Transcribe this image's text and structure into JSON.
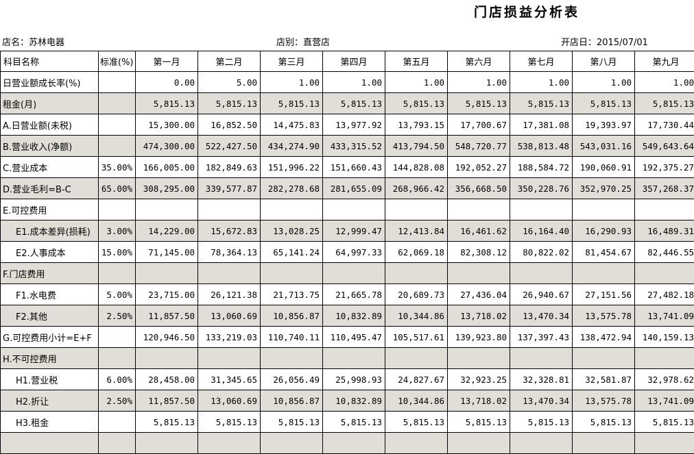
{
  "title": "门店损益分析表",
  "info": {
    "store_name_label": "店名：",
    "store_name": "苏林电器",
    "store_type_label": "店别：",
    "store_type": "直营店",
    "open_date_label": "开店日：",
    "open_date": "2015/07/01"
  },
  "colors": {
    "shaded_row": "#e0ded6",
    "grid_border": "#000000"
  },
  "table": {
    "headers": [
      "科目名称",
      "标准(%)",
      "第一月",
      "第二月",
      "第三月",
      "第四月",
      "第五月",
      "第六月",
      "第七月",
      "第八月",
      "第九月"
    ],
    "rows": [
      {
        "label": "日营业额成长率(%)",
        "standard": "",
        "shaded": false,
        "indent": false,
        "values": [
          "0.00",
          "5.00",
          "1.00",
          "1.00",
          "1.00",
          "1.00",
          "1.00",
          "1.00",
          "1.00"
        ]
      },
      {
        "label": "租金(月)",
        "standard": "",
        "shaded": true,
        "indent": false,
        "values": [
          "5,815.13",
          "5,815.13",
          "5,815.13",
          "5,815.13",
          "5,815.13",
          "5,815.13",
          "5,815.13",
          "5,815.13",
          "5,815.13"
        ]
      },
      {
        "label": "A.日营业额(未税)",
        "standard": "",
        "shaded": false,
        "indent": false,
        "values": [
          "15,300.00",
          "16,852.50",
          "14,475.83",
          "13,977.92",
          "13,793.15",
          "17,700.67",
          "17,381.08",
          "19,393.97",
          "17,730.44"
        ]
      },
      {
        "label": "B.营业收入(净额)",
        "standard": "",
        "shaded": true,
        "indent": false,
        "values": [
          "474,300.00",
          "522,427.50",
          "434,274.90",
          "433,315.52",
          "413,794.50",
          "548,720.77",
          "538,813.48",
          "543,031.16",
          "549,643.64"
        ]
      },
      {
        "label": "C.营业成本",
        "standard": "35.00%",
        "shaded": false,
        "indent": false,
        "values": [
          "166,005.00",
          "182,849.63",
          "151,996.22",
          "151,660.43",
          "144,828.08",
          "192,052.27",
          "188,584.72",
          "190,060.91",
          "192,375.27"
        ]
      },
      {
        "label": "D.营业毛利=B-C",
        "standard": "65.00%",
        "shaded": true,
        "indent": false,
        "values": [
          "308,295.00",
          "339,577.87",
          "282,278.68",
          "281,655.09",
          "268,966.42",
          "356,668.50",
          "350,228.76",
          "352,970.25",
          "357,268.37"
        ]
      },
      {
        "label": "E.可控费用",
        "standard": "",
        "shaded": false,
        "indent": false,
        "values": [
          "",
          "",
          "",
          "",
          "",
          "",
          "",
          "",
          ""
        ]
      },
      {
        "label": "E1.成本差异(损耗)",
        "standard": "3.00%",
        "shaded": true,
        "indent": true,
        "values": [
          "14,229.00",
          "15,672.83",
          "13,028.25",
          "12,999.47",
          "12,413.84",
          "16,461.62",
          "16,164.40",
          "16,290.93",
          "16,489.31"
        ]
      },
      {
        "label": "E2.人事成本",
        "standard": "15.00%",
        "shaded": false,
        "indent": true,
        "values": [
          "71,145.00",
          "78,364.13",
          "65,141.24",
          "64,997.33",
          "62,069.18",
          "82,308.12",
          "80,822.02",
          "81,454.67",
          "82,446.55"
        ]
      },
      {
        "label": "F.门店费用",
        "standard": "",
        "shaded": true,
        "indent": false,
        "values": [
          "",
          "",
          "",
          "",
          "",
          "",
          "",
          "",
          ""
        ]
      },
      {
        "label": "F1.水电费",
        "standard": "5.00%",
        "shaded": false,
        "indent": true,
        "values": [
          "23,715.00",
          "26,121.38",
          "21,713.75",
          "21,665.78",
          "20,689.73",
          "27,436.04",
          "26,940.67",
          "27,151.56",
          "27,482.18"
        ]
      },
      {
        "label": "F2.其他",
        "standard": "2.50%",
        "shaded": true,
        "indent": true,
        "values": [
          "11,857.50",
          "13,060.69",
          "10,856.87",
          "10,832.89",
          "10,344.86",
          "13,718.02",
          "13,470.34",
          "13,575.78",
          "13,741.09"
        ]
      },
      {
        "label": "G.可控费用小计=E+F",
        "standard": "",
        "shaded": false,
        "indent": false,
        "values": [
          "120,946.50",
          "133,219.03",
          "110,740.11",
          "110,495.47",
          "105,517.61",
          "139,923.80",
          "137,397.43",
          "138,472.94",
          "140,159.13"
        ]
      },
      {
        "label": "H.不可控费用",
        "standard": "",
        "shaded": true,
        "indent": false,
        "values": [
          "",
          "",
          "",
          "",
          "",
          "",
          "",
          "",
          ""
        ]
      },
      {
        "label": "H1.营业税",
        "standard": "6.00%",
        "shaded": false,
        "indent": true,
        "values": [
          "28,458.00",
          "31,345.65",
          "26,056.49",
          "25,998.93",
          "24,827.67",
          "32,923.25",
          "32,328.81",
          "32,581.87",
          "32,978.62"
        ]
      },
      {
        "label": "H2.折让",
        "standard": "2.50%",
        "shaded": true,
        "indent": true,
        "values": [
          "11,857.50",
          "13,060.69",
          "10,856.87",
          "10,832.89",
          "10,344.86",
          "13,718.02",
          "13,470.34",
          "13,575.78",
          "13,741.09"
        ]
      },
      {
        "label": "H3.租金",
        "standard": "",
        "shaded": false,
        "indent": true,
        "values": [
          "5,815.13",
          "5,815.13",
          "5,815.13",
          "5,815.13",
          "5,815.13",
          "5,815.13",
          "5,815.13",
          "5,815.13",
          "5,815.13"
        ]
      },
      {
        "label": "",
        "standard": "",
        "shaded": true,
        "indent": false,
        "values": [
          "",
          "",
          "",
          "",
          "",
          "",
          "",
          "",
          ""
        ]
      }
    ]
  }
}
